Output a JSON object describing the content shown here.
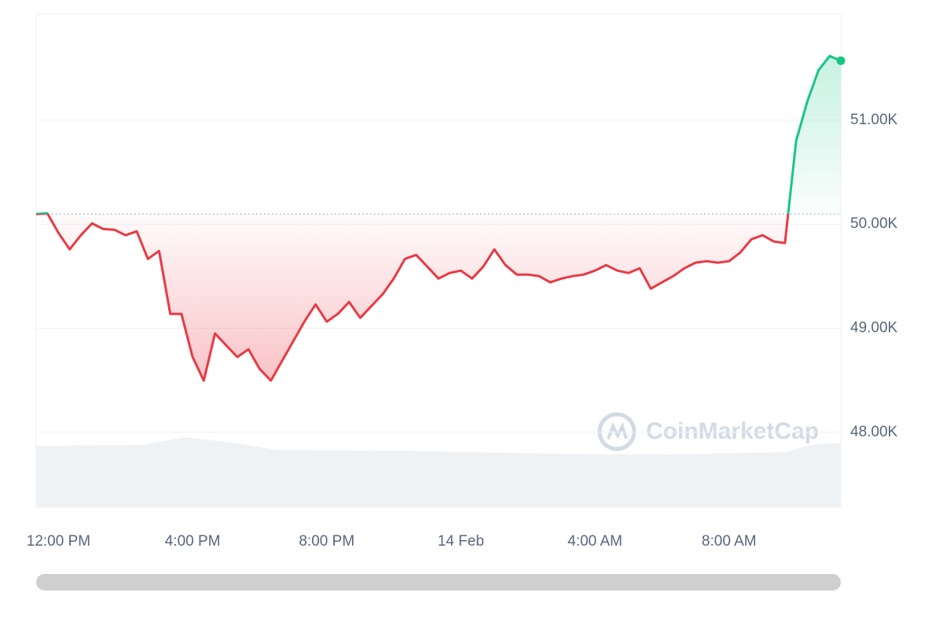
{
  "chart_data": {
    "type": "line",
    "watermark": "CoinMarketCap",
    "color_up": "#16c784",
    "color_down": "#ea3943",
    "baseline": 50098,
    "grid": true,
    "ylim": [
      47280,
      52020
    ],
    "yticks": [
      {
        "value": 48000,
        "label": "48.00K"
      },
      {
        "value": 49000,
        "label": "49.00K"
      },
      {
        "value": 50000,
        "label": "50.00K"
      },
      {
        "value": 51000,
        "label": "51.00K"
      }
    ],
    "categories": [
      null,
      null,
      "12:00 PM",
      null,
      null,
      null,
      null,
      null,
      null,
      null,
      null,
      null,
      null,
      null,
      "4:00 PM",
      null,
      null,
      null,
      null,
      null,
      null,
      null,
      null,
      null,
      null,
      null,
      "8:00 PM",
      null,
      null,
      null,
      null,
      null,
      null,
      null,
      null,
      null,
      null,
      null,
      "14 Feb",
      null,
      null,
      null,
      null,
      null,
      null,
      null,
      null,
      null,
      null,
      null,
      "4:00 AM",
      null,
      null,
      null,
      null,
      null,
      null,
      null,
      null,
      null,
      null,
      null,
      "8:00 AM",
      null,
      null,
      null,
      null,
      null,
      null,
      null,
      null,
      null,
      null
    ],
    "values": [
      50098,
      50106,
      49917,
      49758,
      49894,
      50008,
      49955,
      49947,
      49894,
      49932,
      49667,
      49743,
      49138,
      49138,
      48723,
      48496,
      48949,
      48836,
      48723,
      48798,
      48609,
      48496,
      48685,
      48874,
      49063,
      49229,
      49063,
      49138,
      49252,
      49100,
      49214,
      49327,
      49478,
      49667,
      49705,
      49592,
      49478,
      49531,
      49554,
      49478,
      49592,
      49758,
      49607,
      49516,
      49516,
      49501,
      49441,
      49478,
      49501,
      49516,
      49554,
      49607,
      49554,
      49531,
      49577,
      49380,
      49441,
      49501,
      49577,
      49630,
      49645,
      49630,
      49645,
      49728,
      49856,
      49894,
      49834,
      49819,
      50801,
      51179,
      51481,
      51618,
      51572
    ]
  }
}
